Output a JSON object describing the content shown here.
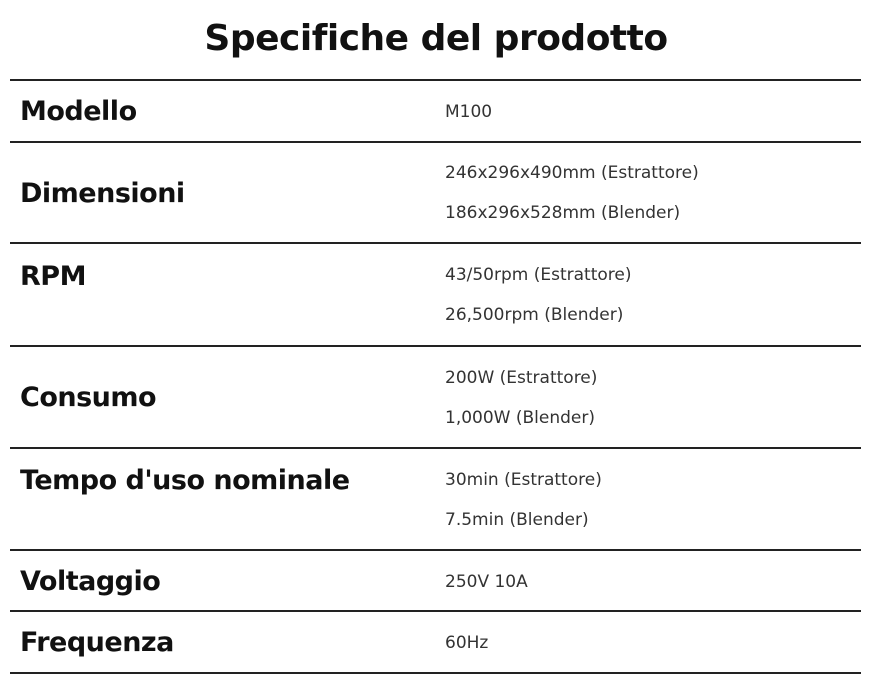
{
  "title": "Specifiche del prodotto",
  "rows": [
    {
      "label": "Modello",
      "values": [
        "M100"
      ]
    },
    {
      "label": "Dimensioni",
      "values": [
        "246x296x490mm (Estrattore)",
        "186x296x528mm (Blender)"
      ]
    },
    {
      "label": "RPM",
      "values": [
        "43/50rpm (Estrattore)",
        "26,500rpm (Blender)"
      ]
    },
    {
      "label": "Consumo",
      "values": [
        "200W (Estrattore)",
        "1,000W (Blender)"
      ]
    },
    {
      "label": "Tempo d'uso nominale",
      "values": [
        "30min (Estrattore)",
        "7.5min (Blender)"
      ]
    },
    {
      "label": "Voltaggio",
      "values": [
        "250V 10A"
      ]
    },
    {
      "label": "Frequenza",
      "values": [
        "60Hz"
      ]
    }
  ]
}
